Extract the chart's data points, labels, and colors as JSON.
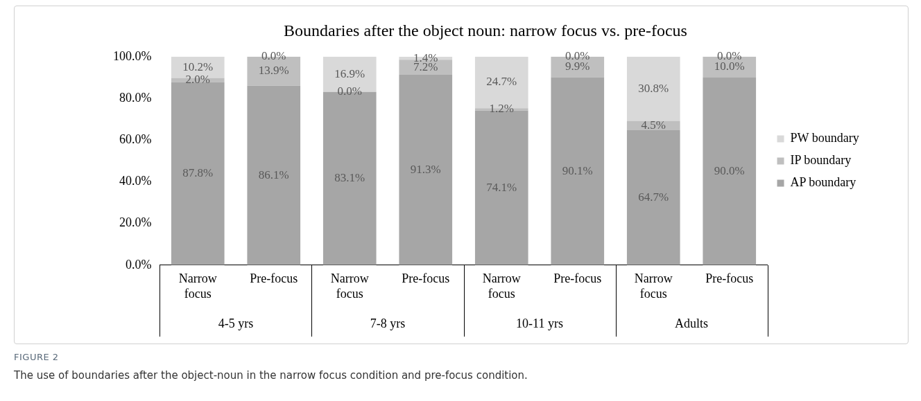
{
  "chart_data": {
    "type": "bar",
    "title": "Boundaries after the object noun: narrow focus vs. pre-focus",
    "stacked": true,
    "categories": [
      "Narrow focus",
      "Pre-focus",
      "Narrow focus",
      "Pre-focus",
      "Narrow focus",
      "Pre-focus",
      "Narrow focus",
      "Pre-focus"
    ],
    "series": [
      {
        "name": "AP boundary",
        "color": "#a6a6a6",
        "values": [
          87.8,
          86.1,
          83.1,
          91.3,
          74.1,
          90.1,
          64.7,
          90.0
        ],
        "value_labels": [
          "87.8%",
          "86.1%",
          "83.1%",
          "91.3%",
          "74.1%",
          "90.1%",
          "64.7%",
          "90.0%"
        ]
      },
      {
        "name": "IP boundary",
        "color": "#bfbfbf",
        "values": [
          2.0,
          13.9,
          0.0,
          7.2,
          1.2,
          9.9,
          4.5,
          10.0
        ],
        "value_labels": [
          "2.0%",
          "13.9%",
          "0.0%",
          "7.2%",
          "1.2%",
          "9.9%",
          "4.5%",
          "10.0%"
        ]
      },
      {
        "name": "PW boundary",
        "color": "#d9d9d9",
        "values": [
          10.2,
          0.0,
          16.9,
          1.4,
          24.7,
          0.0,
          30.8,
          0.0
        ],
        "value_labels": [
          "10.2%",
          "0.0%",
          "16.9%",
          "1.4%",
          "24.7%",
          "0.0%",
          "30.8%",
          "0.0%"
        ]
      }
    ],
    "ylim": [
      0,
      100
    ],
    "yticks": [
      {
        "value": 0,
        "label": "0.0%"
      },
      {
        "value": 20,
        "label": "20.0%"
      },
      {
        "value": 40,
        "label": "40.0%"
      },
      {
        "value": 60,
        "label": "60.0%"
      },
      {
        "value": 80,
        "label": "80.0%"
      },
      {
        "value": 100,
        "label": "100.0%"
      }
    ],
    "grid": false,
    "legend": "right",
    "annotations": [
      "4-5 yrs",
      "7-8 yrs",
      "10-11 yrs",
      "Adults",
      "FIGURE 2",
      "The use of boundaries after the object-noun in the narrow focus condition and pre-focus condition."
    ]
  }
}
